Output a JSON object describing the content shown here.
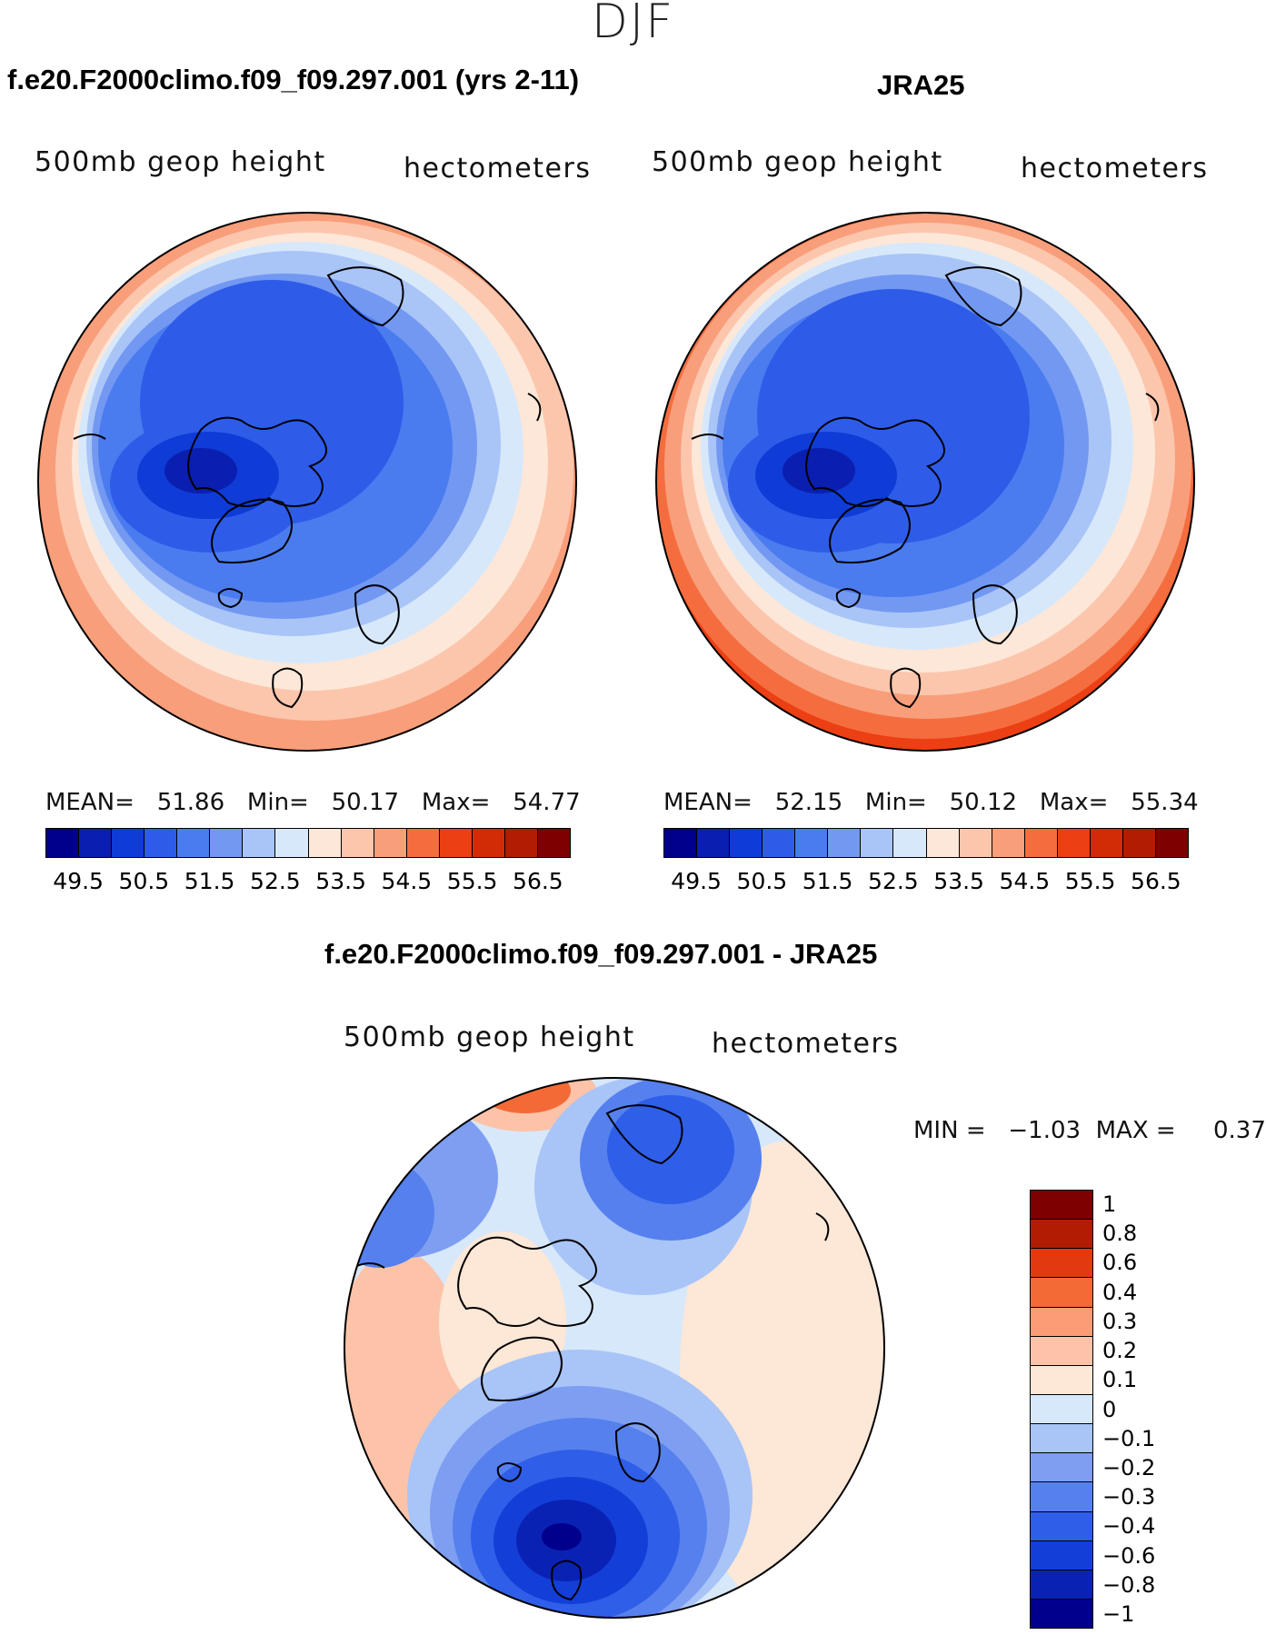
{
  "season": "DJF",
  "panels": [
    {
      "title": "f.e20.F2000climo.f09_f09.297.001 (yrs 2-11)",
      "variable": "500mb  geop  height",
      "units": "hectometers",
      "mean_label": "MEAN=",
      "mean": "51.86",
      "min_label": "Min=",
      "min": "50.17",
      "max_label": "Max=",
      "max": "54.77"
    },
    {
      "title": "JRA25",
      "variable": "500mb  geop  height",
      "units": "hectometers",
      "mean_label": "MEAN=",
      "mean": "52.15",
      "min_label": "Min=",
      "min": "50.12",
      "max_label": "Max=",
      "max": "55.34"
    }
  ],
  "difference": {
    "title": "f.e20.F2000climo.f09_f09.297.001 - JRA25",
    "variable": "500mb  geop  height",
    "units": "hectometers",
    "minmax_text": "MIN =   −1.03  MAX =     0.37"
  },
  "colorbar_main": {
    "colors": [
      "#00008c",
      "#0a1fb0",
      "#0f3bd6",
      "#2e5ce9",
      "#4a7cf0",
      "#7298f2",
      "#a9c4f7",
      "#d7e8fb",
      "#fde7d8",
      "#fcc6ad",
      "#f99e7a",
      "#f56d3e",
      "#ec3f13",
      "#d22c06",
      "#b01d03",
      "#7e0000"
    ],
    "tick_labels": [
      "49.5",
      "50.5",
      "51.5",
      "52.5",
      "53.5",
      "54.5",
      "55.5",
      "56.5"
    ]
  },
  "colorbar_diff": {
    "colors": [
      "#7e0000",
      "#b01d03",
      "#e23a0e",
      "#f46a37",
      "#fb9c76",
      "#fcc3a8",
      "#fde7d6",
      "#d7e8fb",
      "#a9c4f7",
      "#7e9ef2",
      "#5580ee",
      "#2f5ee8",
      "#133fd8",
      "#0a22b4",
      "#00008c"
    ],
    "labels": [
      "1",
      "0.8",
      "0.6",
      "0.4",
      "0.3",
      "0.2",
      "0.1",
      "0",
      "−0.1",
      "−0.2",
      "−0.3",
      "−0.4",
      "−0.6",
      "−0.8",
      "−1"
    ]
  }
}
